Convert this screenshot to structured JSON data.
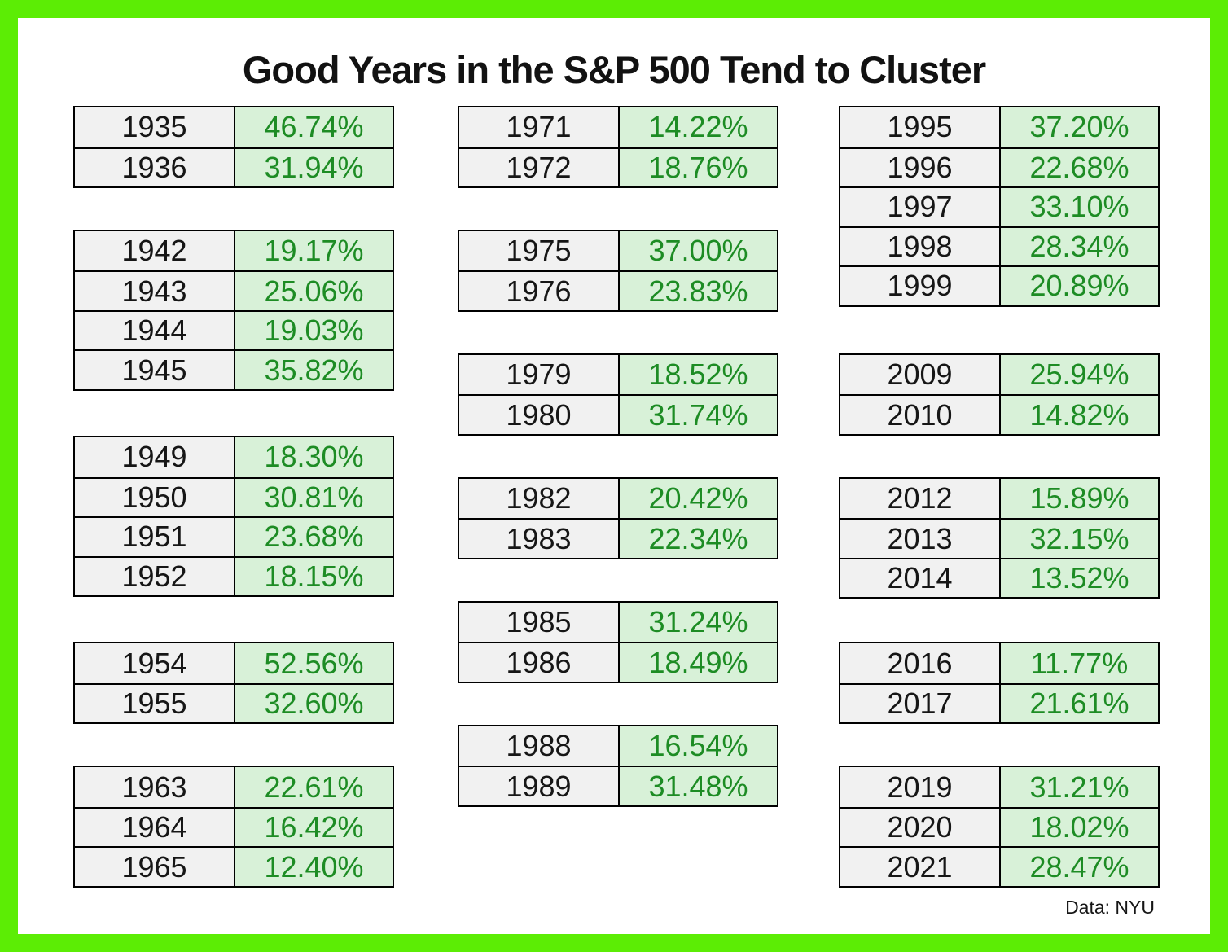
{
  "colors": {
    "frame_green": "#5ced05",
    "year_cell_bg": "#f1f1f1",
    "return_cell_bg": "#d8f1d8",
    "return_text_green": "#1d8c24",
    "cell_border": "#000000",
    "title_text": "#121212"
  },
  "chart_data": {
    "type": "table",
    "title": "Good Years in the S&P 500 Tend to Cluster",
    "source": "Data: NYU",
    "column_fields": [
      "year",
      "annual return %"
    ],
    "layout_hint": "three columns of clustered year/return blocks; blank slot between clusters",
    "columns": [
      {
        "groups": [
          {
            "rows": [
              {
                "year": "1935",
                "return": "46.74%"
              },
              {
                "year": "1936",
                "return": "31.94%"
              }
            ]
          },
          {
            "rows": [
              {
                "year": "1942",
                "return": "19.17%"
              },
              {
                "year": "1943",
                "return": "25.06%"
              },
              {
                "year": "1944",
                "return": "19.03%"
              },
              {
                "year": "1945",
                "return": "35.82%"
              }
            ]
          },
          {
            "rows": [
              {
                "year": "1949",
                "return": "18.30%"
              },
              {
                "year": "1950",
                "return": "30.81%"
              },
              {
                "year": "1951",
                "return": "23.68%"
              },
              {
                "year": "1952",
                "return": "18.15%"
              }
            ]
          },
          {
            "rows": [
              {
                "year": "1954",
                "return": "52.56%"
              },
              {
                "year": "1955",
                "return": "32.60%"
              }
            ]
          },
          {
            "rows": [
              {
                "year": "1963",
                "return": "22.61%"
              },
              {
                "year": "1964",
                "return": "16.42%"
              },
              {
                "year": "1965",
                "return": "12.40%"
              }
            ]
          }
        ]
      },
      {
        "groups": [
          {
            "rows": [
              {
                "year": "1971",
                "return": "14.22%"
              },
              {
                "year": "1972",
                "return": "18.76%"
              }
            ]
          },
          {
            "rows": [
              {
                "year": "1975",
                "return": "37.00%"
              },
              {
                "year": "1976",
                "return": "23.83%"
              }
            ]
          },
          {
            "rows": [
              {
                "year": "1979",
                "return": "18.52%"
              },
              {
                "year": "1980",
                "return": "31.74%"
              }
            ]
          },
          {
            "rows": [
              {
                "year": "1982",
                "return": "20.42%"
              },
              {
                "year": "1983",
                "return": "22.34%"
              }
            ]
          },
          {
            "rows": [
              {
                "year": "1985",
                "return": "31.24%"
              },
              {
                "year": "1986",
                "return": "18.49%"
              }
            ]
          },
          {
            "rows": [
              {
                "year": "1988",
                "return": "16.54%"
              },
              {
                "year": "1989",
                "return": "31.48%"
              }
            ]
          }
        ]
      },
      {
        "groups": [
          {
            "rows": [
              {
                "year": "1995",
                "return": "37.20%"
              },
              {
                "year": "1996",
                "return": "22.68%"
              },
              {
                "year": "1997",
                "return": "33.10%"
              },
              {
                "year": "1998",
                "return": "28.34%"
              },
              {
                "year": "1999",
                "return": "20.89%"
              }
            ]
          },
          {
            "rows": [
              {
                "year": "2009",
                "return": "25.94%"
              },
              {
                "year": "2010",
                "return": "14.82%"
              }
            ]
          },
          {
            "rows": [
              {
                "year": "2012",
                "return": "15.89%"
              },
              {
                "year": "2013",
                "return": "32.15%"
              },
              {
                "year": "2014",
                "return": "13.52%"
              }
            ]
          },
          {
            "rows": [
              {
                "year": "2016",
                "return": "11.77%"
              },
              {
                "year": "2017",
                "return": "21.61%"
              }
            ]
          },
          {
            "rows": [
              {
                "year": "2019",
                "return": "31.21%"
              },
              {
                "year": "2020",
                "return": "18.02%"
              },
              {
                "year": "2021",
                "return": "28.47%"
              }
            ]
          }
        ]
      }
    ]
  }
}
